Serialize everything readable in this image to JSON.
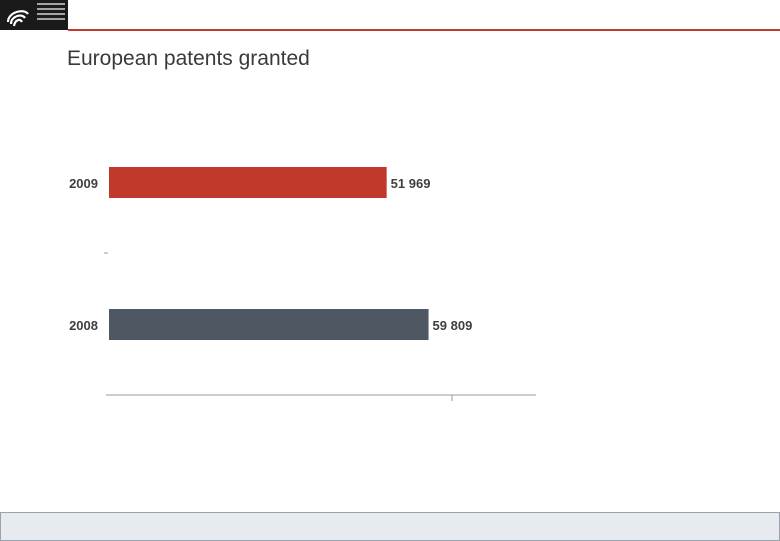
{
  "header": {
    "logo_icon": "epo-spiral-logo-icon",
    "accent_color": "#c0392b"
  },
  "page": {
    "title": "European patents granted"
  },
  "chart_data": {
    "type": "bar",
    "orientation": "horizontal",
    "categories": [
      "2009",
      "2008"
    ],
    "values": [
      51969,
      59809
    ],
    "value_labels": [
      "51 969",
      "59 809"
    ],
    "colors": [
      "#c0392b",
      "#4d5862"
    ],
    "xlim": [
      0,
      70000
    ],
    "grid": false
  }
}
